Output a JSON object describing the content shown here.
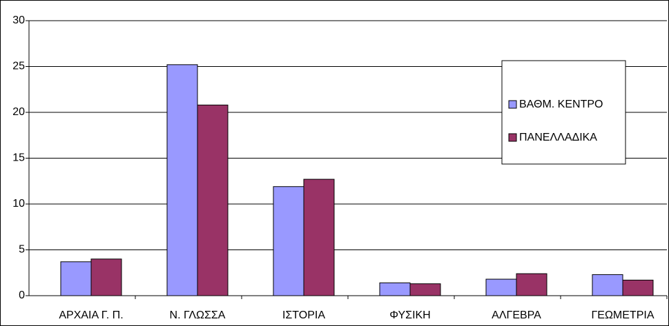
{
  "chart_data": {
    "type": "bar",
    "categories": [
      "ΑΡΧΑΙΑ  Γ. Π.",
      "Ν.  ΓΛΩΣΣΑ",
      "ΙΣΤΟΡΙΑ",
      "ΦΥΣΙΚΗ",
      "ΑΛΓΕΒΡΑ",
      "ΓΕΩΜΕΤΡΙΑ"
    ],
    "series": [
      {
        "name": "ΒΑΘΜ.  ΚΕΝΤΡΟ",
        "color": "#9999ff",
        "values": [
          3.7,
          25.2,
          11.9,
          1.4,
          1.8,
          2.3
        ]
      },
      {
        "name": "ΠΑΝΕΛΛΑΔΙΚΑ",
        "color": "#993366",
        "values": [
          4.0,
          20.8,
          12.7,
          1.3,
          2.4,
          1.7
        ]
      }
    ],
    "ylim": [
      0,
      30
    ],
    "yticks": [
      0,
      5,
      10,
      15,
      20,
      25,
      30
    ],
    "grid": true,
    "legend": "right"
  }
}
